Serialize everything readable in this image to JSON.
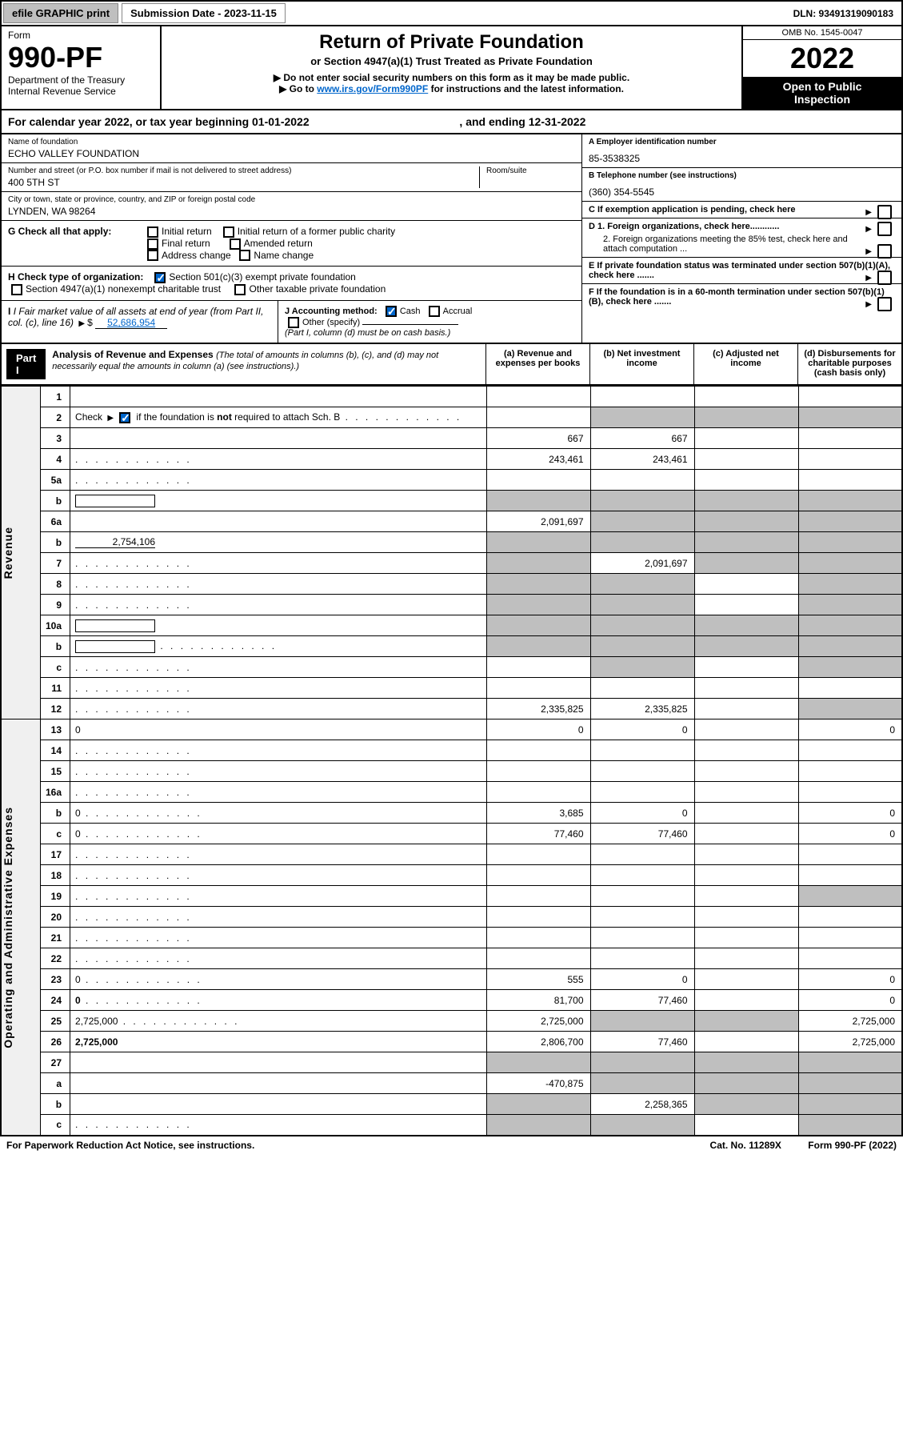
{
  "topbar": {
    "efile": "efile GRAPHIC print",
    "submission_label": "Submission Date - 2023-11-15",
    "dln": "DLN: 93491319090183"
  },
  "header": {
    "form_word": "Form",
    "form_no": "990-PF",
    "dept1": "Department of the Treasury",
    "dept2": "Internal Revenue Service",
    "title": "Return of Private Foundation",
    "subtitle": "or Section 4947(a)(1) Trust Treated as Private Foundation",
    "note1": "▶ Do not enter social security numbers on this form as it may be made public.",
    "note2_pre": "▶ Go to ",
    "note2_link": "www.irs.gov/Form990PF",
    "note2_post": " for instructions and the latest information.",
    "omb": "OMB No. 1545-0047",
    "year": "2022",
    "inspect1": "Open to Public",
    "inspect2": "Inspection"
  },
  "cal_year": {
    "pre": "For calendar year 2022, or tax year beginning ",
    "begin": "01-01-2022",
    "mid": " , and ending ",
    "end": "12-31-2022"
  },
  "info": {
    "name_lbl": "Name of foundation",
    "name": "ECHO VALLEY FOUNDATION",
    "addr_lbl": "Number and street (or P.O. box number if mail is not delivered to street address)",
    "addr": "400 5TH ST",
    "room_lbl": "Room/suite",
    "city_lbl": "City or town, state or province, country, and ZIP or foreign postal code",
    "city": "LYNDEN, WA  98264",
    "a_lbl": "A Employer identification number",
    "a_val": "85-3538325",
    "b_lbl": "B Telephone number (see instructions)",
    "b_val": "(360) 354-5545",
    "c_lbl": "C If exemption application is pending, check here",
    "d1": "D 1. Foreign organizations, check here............",
    "d2": "2. Foreign organizations meeting the 85% test, check here and attach computation ...",
    "e_lbl": "E  If private foundation status was terminated under section 507(b)(1)(A), check here .......",
    "f_lbl": "F  If the foundation is in a 60-month termination under section 507(b)(1)(B), check here ......."
  },
  "g": {
    "label": "G Check all that apply:",
    "opts": [
      "Initial return",
      "Initial return of a former public charity",
      "Final return",
      "Amended return",
      "Address change",
      "Name change"
    ]
  },
  "h": {
    "label": "H Check type of organization:",
    "opt1": "Section 501(c)(3) exempt private foundation",
    "opt2": "Section 4947(a)(1) nonexempt charitable trust",
    "opt3": "Other taxable private foundation"
  },
  "i": {
    "label": "I Fair market value of all assets at end of year (from Part II, col. (c), line 16)",
    "val": "52,686,954"
  },
  "j": {
    "label": "J Accounting method:",
    "cash": "Cash",
    "accrual": "Accrual",
    "other": "Other (specify)",
    "note": "(Part I, column (d) must be on cash basis.)"
  },
  "part1": {
    "label": "Part I",
    "title": "Analysis of Revenue and Expenses",
    "title_note": "(The total of amounts in columns (b), (c), and (d) may not necessarily equal the amounts in column (a) (see instructions).)",
    "col_a": "(a) Revenue and expenses per books",
    "col_b": "(b) Net investment income",
    "col_c": "(c) Adjusted net income",
    "col_d": "(d) Disbursements for charitable purposes (cash basis only)"
  },
  "side": {
    "revenue": "Revenue",
    "expenses": "Operating and Administrative Expenses"
  },
  "rows": [
    {
      "n": "1",
      "d": "",
      "a": "",
      "b": "",
      "c": "",
      "grey_cd": false
    },
    {
      "n": "2",
      "d": "",
      "a": "",
      "b": "",
      "c": "",
      "dots": true,
      "grey_bcd": true,
      "checkbox": true
    },
    {
      "n": "3",
      "d": "",
      "a": "667",
      "b": "667",
      "c": ""
    },
    {
      "n": "4",
      "d": "",
      "a": "243,461",
      "b": "243,461",
      "c": "",
      "dots": true
    },
    {
      "n": "5a",
      "d": "",
      "a": "",
      "b": "",
      "c": "",
      "dots": true
    },
    {
      "n": "b",
      "d": "",
      "a": "",
      "b": "",
      "c": "",
      "inline_blank": true,
      "grey_all": true
    },
    {
      "n": "6a",
      "d": "",
      "a": "2,091,697",
      "b": "",
      "c": "",
      "grey_bcd": true
    },
    {
      "n": "b",
      "d": "",
      "inline_val": "2,754,106",
      "a": "",
      "b": "",
      "c": "",
      "grey_all": true
    },
    {
      "n": "7",
      "d": "",
      "a": "",
      "b": "2,091,697",
      "c": "",
      "dots": true,
      "grey_a": true,
      "grey_cd": true
    },
    {
      "n": "8",
      "d": "",
      "a": "",
      "b": "",
      "c": "",
      "dots": true,
      "grey_ab": true,
      "grey_d": true
    },
    {
      "n": "9",
      "d": "",
      "a": "",
      "b": "",
      "c": "",
      "dots": true,
      "grey_ab": true,
      "grey_d": true
    },
    {
      "n": "10a",
      "d": "",
      "a": "",
      "b": "",
      "c": "",
      "inline_blank": true,
      "grey_all": true
    },
    {
      "n": "b",
      "d": "",
      "a": "",
      "b": "",
      "c": "",
      "dots": true,
      "inline_blank": true,
      "grey_all": true
    },
    {
      "n": "c",
      "d": "",
      "a": "",
      "b": "",
      "c": "",
      "dots": true,
      "grey_b": true,
      "grey_d": true
    },
    {
      "n": "11",
      "d": "",
      "a": "",
      "b": "",
      "c": "",
      "dots": true
    },
    {
      "n": "12",
      "d": "",
      "a": "2,335,825",
      "b": "2,335,825",
      "c": "",
      "dots": true,
      "bold": true,
      "grey_d": true
    },
    {
      "n": "13",
      "d": "0",
      "a": "0",
      "b": "0",
      "c": ""
    },
    {
      "n": "14",
      "d": "",
      "a": "",
      "b": "",
      "c": "",
      "dots": true
    },
    {
      "n": "15",
      "d": "",
      "a": "",
      "b": "",
      "c": "",
      "dots": true
    },
    {
      "n": "16a",
      "d": "",
      "a": "",
      "b": "",
      "c": "",
      "dots": true
    },
    {
      "n": "b",
      "d": "0",
      "a": "3,685",
      "b": "0",
      "c": "",
      "dots": true
    },
    {
      "n": "c",
      "d": "0",
      "a": "77,460",
      "b": "77,460",
      "c": "",
      "dots": true
    },
    {
      "n": "17",
      "d": "",
      "a": "",
      "b": "",
      "c": "",
      "dots": true
    },
    {
      "n": "18",
      "d": "",
      "a": "",
      "b": "",
      "c": "",
      "dots": true
    },
    {
      "n": "19",
      "d": "",
      "a": "",
      "b": "",
      "c": "",
      "dots": true,
      "grey_d": true
    },
    {
      "n": "20",
      "d": "",
      "a": "",
      "b": "",
      "c": "",
      "dots": true
    },
    {
      "n": "21",
      "d": "",
      "a": "",
      "b": "",
      "c": "",
      "dots": true
    },
    {
      "n": "22",
      "d": "",
      "a": "",
      "b": "",
      "c": "",
      "dots": true
    },
    {
      "n": "23",
      "d": "0",
      "a": "555",
      "b": "0",
      "c": "",
      "dots": true
    },
    {
      "n": "24",
      "d": "0",
      "a": "81,700",
      "b": "77,460",
      "c": "",
      "dots": true,
      "bold": true
    },
    {
      "n": "25",
      "d": "2,725,000",
      "a": "2,725,000",
      "b": "",
      "c": "",
      "dots": true,
      "grey_bc": true
    },
    {
      "n": "26",
      "d": "2,725,000",
      "a": "2,806,700",
      "b": "77,460",
      "c": "",
      "bold": true
    },
    {
      "n": "27",
      "d": "",
      "a": "",
      "b": "",
      "c": "",
      "grey_all": true
    },
    {
      "n": "a",
      "d": "",
      "a": "-470,875",
      "b": "",
      "c": "",
      "bold": true,
      "grey_bcd": true
    },
    {
      "n": "b",
      "d": "",
      "a": "",
      "b": "2,258,365",
      "c": "",
      "bold": true,
      "grey_a": true,
      "grey_cd": true
    },
    {
      "n": "c",
      "d": "",
      "a": "",
      "b": "",
      "c": "",
      "dots": true,
      "bold": true,
      "grey_ab": true,
      "grey_d": true
    }
  ],
  "footer": {
    "left": "For Paperwork Reduction Act Notice, see instructions.",
    "mid": "Cat. No. 11289X",
    "right": "Form 990-PF (2022)"
  }
}
